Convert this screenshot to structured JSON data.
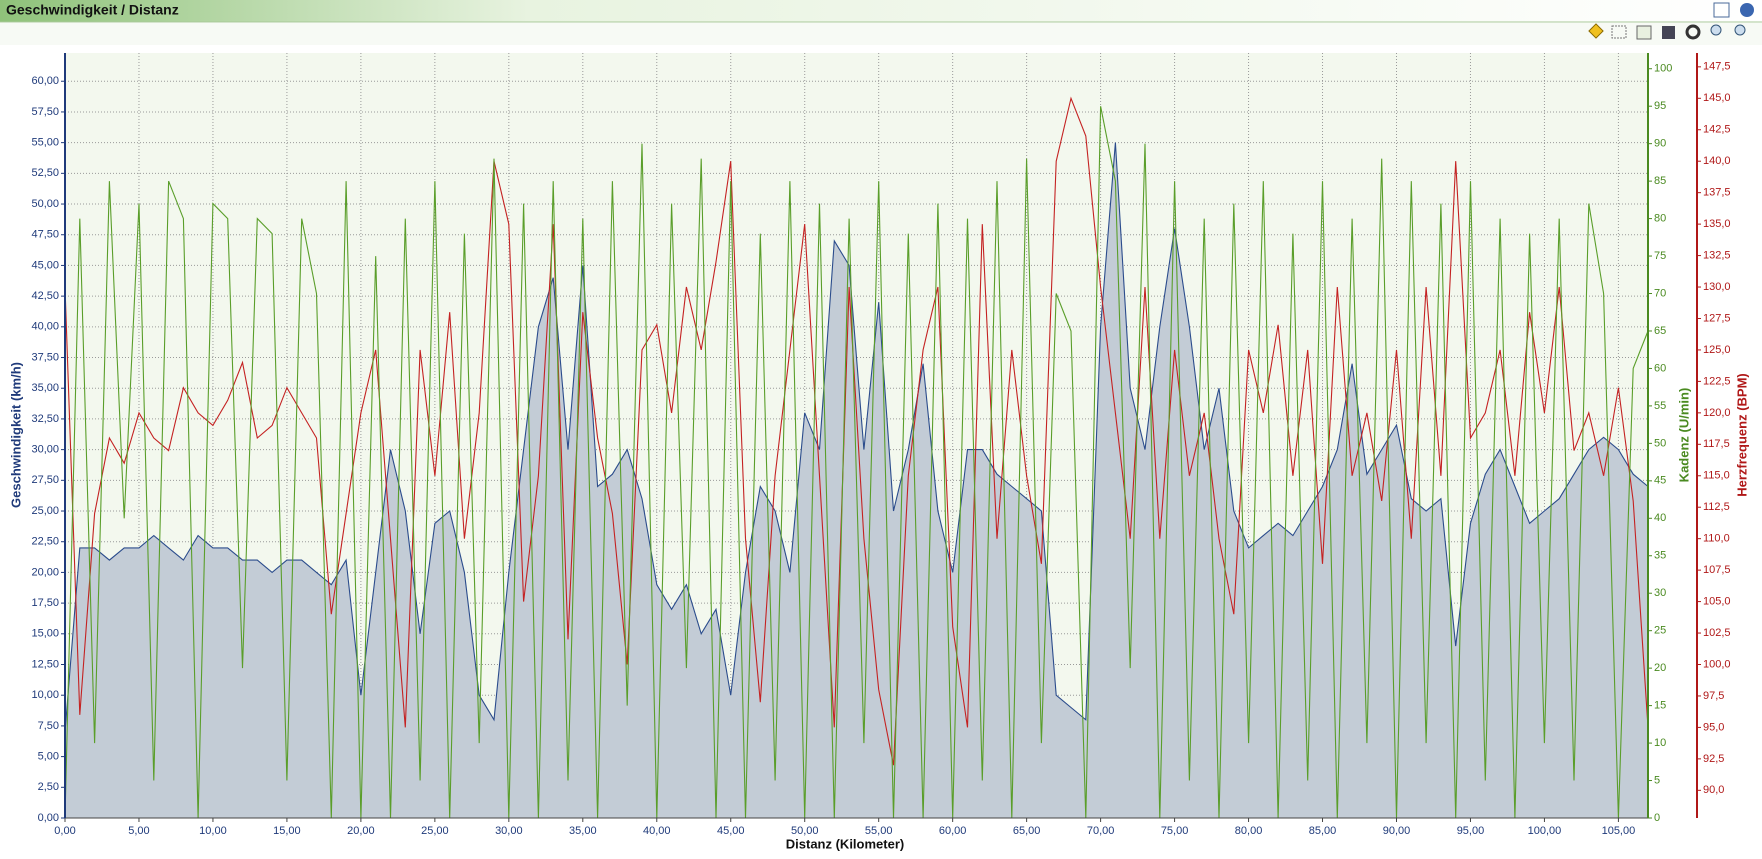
{
  "chart_data": {
    "type": "line",
    "title": "Geschwindigkeit / Distanz",
    "xlabel": "Distanz (Kilometer)",
    "ylabel": "Geschwindigkeit (km/h)",
    "y2label": "Kadenz (U/min)",
    "y3label": "Herzfrequenz (BPM)",
    "grid": true,
    "xlim": [
      0,
      107
    ],
    "ylim": [
      0,
      62.3
    ],
    "y2lim": [
      0,
      102.1
    ],
    "y3lim": [
      87.8,
      148.6
    ],
    "xticks": [
      {
        "value": 0,
        "label": "0,00"
      },
      {
        "value": 5,
        "label": "5,00"
      },
      {
        "value": 10,
        "label": "10,00"
      },
      {
        "value": 15,
        "label": "15,00"
      },
      {
        "value": 20,
        "label": "20,00"
      },
      {
        "value": 25,
        "label": "25,00"
      },
      {
        "value": 30,
        "label": "30,00"
      },
      {
        "value": 35,
        "label": "35,00"
      },
      {
        "value": 40,
        "label": "40,00"
      },
      {
        "value": 45,
        "label": "45,00"
      },
      {
        "value": 50,
        "label": "50,00"
      },
      {
        "value": 55,
        "label": "55,00"
      },
      {
        "value": 60,
        "label": "60,00"
      },
      {
        "value": 65,
        "label": "65,00"
      },
      {
        "value": 70,
        "label": "70,00"
      },
      {
        "value": 75,
        "label": "75,00"
      },
      {
        "value": 80,
        "label": "80,00"
      },
      {
        "value": 85,
        "label": "85,00"
      },
      {
        "value": 90,
        "label": "90,00"
      },
      {
        "value": 95,
        "label": "95,00"
      },
      {
        "value": 100,
        "label": "100,00"
      },
      {
        "value": 105,
        "label": "105,00"
      }
    ],
    "yticks": [
      {
        "value": 0,
        "label": "0,00"
      },
      {
        "value": 2.5,
        "label": "2,50"
      },
      {
        "value": 5,
        "label": "5,00"
      },
      {
        "value": 7.5,
        "label": "7,50"
      },
      {
        "value": 10,
        "label": "10,00"
      },
      {
        "value": 12.5,
        "label": "12,50"
      },
      {
        "value": 15,
        "label": "15,00"
      },
      {
        "value": 17.5,
        "label": "17,50"
      },
      {
        "value": 20,
        "label": "20,00"
      },
      {
        "value": 22.5,
        "label": "22,50"
      },
      {
        "value": 25,
        "label": "25,00"
      },
      {
        "value": 27.5,
        "label": "27,50"
      },
      {
        "value": 30,
        "label": "30,00"
      },
      {
        "value": 32.5,
        "label": "32,50"
      },
      {
        "value": 35,
        "label": "35,00"
      },
      {
        "value": 37.5,
        "label": "37,50"
      },
      {
        "value": 40,
        "label": "40,00"
      },
      {
        "value": 42.5,
        "label": "42,50"
      },
      {
        "value": 45,
        "label": "45,00"
      },
      {
        "value": 47.5,
        "label": "47,50"
      },
      {
        "value": 50,
        "label": "50,00"
      },
      {
        "value": 52.5,
        "label": "52,50"
      },
      {
        "value": 55,
        "label": "55,00"
      },
      {
        "value": 57.5,
        "label": "57,50"
      },
      {
        "value": 60,
        "label": "60,00"
      }
    ],
    "y2ticks": [
      0,
      5,
      10,
      15,
      20,
      25,
      30,
      35,
      40,
      45,
      50,
      55,
      60,
      65,
      70,
      75,
      80,
      85,
      90,
      95,
      100
    ],
    "y3ticks": [
      {
        "value": 90,
        "label": "90,0"
      },
      {
        "value": 92.5,
        "label": "92,5"
      },
      {
        "value": 95,
        "label": "95,0"
      },
      {
        "value": 97.5,
        "label": "97,5"
      },
      {
        "value": 100,
        "label": "100,0"
      },
      {
        "value": 102.5,
        "label": "102,5"
      },
      {
        "value": 105,
        "label": "105,0"
      },
      {
        "value": 107.5,
        "label": "107,5"
      },
      {
        "value": 110,
        "label": "110,0"
      },
      {
        "value": 112.5,
        "label": "112,5"
      },
      {
        "value": 115,
        "label": "115,0"
      },
      {
        "value": 117.5,
        "label": "117,5"
      },
      {
        "value": 120,
        "label": "120,0"
      },
      {
        "value": 122.5,
        "label": "122,5"
      },
      {
        "value": 125,
        "label": "125,0"
      },
      {
        "value": 127.5,
        "label": "127,5"
      },
      {
        "value": 130,
        "label": "130,0"
      },
      {
        "value": 132.5,
        "label": "132,5"
      },
      {
        "value": 135,
        "label": "135,0"
      },
      {
        "value": 137.5,
        "label": "137,5"
      },
      {
        "value": 140,
        "label": "140,0"
      },
      {
        "value": 142.5,
        "label": "142,5"
      },
      {
        "value": 145,
        "label": "145,0"
      },
      {
        "value": 147.5,
        "label": "147,5"
      }
    ],
    "x": [
      0,
      1,
      2,
      3,
      4,
      5,
      6,
      7,
      8,
      9,
      10,
      11,
      12,
      13,
      14,
      15,
      16,
      17,
      18,
      19,
      20,
      21,
      22,
      23,
      24,
      25,
      26,
      27,
      28,
      29,
      30,
      31,
      32,
      33,
      34,
      35,
      36,
      37,
      38,
      39,
      40,
      41,
      42,
      43,
      44,
      45,
      46,
      47,
      48,
      49,
      50,
      51,
      52,
      53,
      54,
      55,
      56,
      57,
      58,
      59,
      60,
      61,
      62,
      63,
      64,
      65,
      66,
      67,
      68,
      69,
      70,
      71,
      72,
      73,
      74,
      75,
      76,
      77,
      78,
      79,
      80,
      81,
      82,
      83,
      84,
      85,
      86,
      87,
      88,
      89,
      90,
      91,
      92,
      93,
      94,
      95,
      96,
      97,
      98,
      99,
      100,
      101,
      102,
      103,
      104,
      105,
      106,
      107
    ],
    "series": [
      {
        "color": "#2b4c8c",
        "fill": "#c3ccd6",
        "axis": "y",
        "values": [
          7,
          22,
          22,
          21,
          22,
          22,
          23,
          22,
          21,
          23,
          22,
          22,
          21,
          21,
          20,
          21,
          21,
          20,
          19,
          21,
          10,
          20,
          30,
          25,
          15,
          24,
          25,
          20,
          10,
          8,
          20,
          30,
          40,
          44,
          30,
          45,
          27,
          28,
          30,
          26,
          19,
          17,
          19,
          15,
          17,
          10,
          20,
          27,
          25,
          20,
          33,
          30,
          47,
          45,
          30,
          42,
          25,
          30,
          37,
          25,
          20,
          30,
          30,
          28,
          27,
          26,
          25,
          10,
          9,
          8,
          40,
          55,
          35,
          30,
          40,
          48,
          40,
          30,
          35,
          25,
          22,
          23,
          24,
          23,
          25,
          27,
          30,
          37,
          28,
          30,
          32,
          26,
          25,
          26,
          14,
          24,
          28,
          30,
          27,
          24,
          25,
          26,
          28,
          30,
          31,
          30,
          28,
          27
        ]
      },
      {
        "color": "#5a9e2a",
        "axis": "y2",
        "values": [
          0,
          80,
          10,
          85,
          40,
          82,
          5,
          85,
          80,
          0,
          82,
          80,
          20,
          80,
          78,
          5,
          80,
          70,
          0,
          85,
          0,
          75,
          0,
          80,
          5,
          85,
          0,
          78,
          10,
          88,
          0,
          82,
          0,
          85,
          5,
          80,
          0,
          85,
          15,
          90,
          0,
          82,
          20,
          88,
          0,
          85,
          0,
          78,
          5,
          85,
          0,
          82,
          0,
          80,
          10,
          85,
          0,
          78,
          0,
          82,
          0,
          80,
          5,
          85,
          0,
          88,
          10,
          70,
          65,
          0,
          95,
          85,
          20,
          90,
          0,
          85,
          5,
          80,
          0,
          82,
          10,
          85,
          0,
          78,
          5,
          85,
          0,
          80,
          10,
          88,
          0,
          85,
          10,
          82,
          0,
          85,
          5,
          80,
          0,
          78,
          10,
          80,
          5,
          82,
          70,
          0,
          60,
          65
        ]
      },
      {
        "color": "#c42222",
        "axis": "y3",
        "values": [
          130,
          96,
          112,
          118,
          116,
          120,
          118,
          117,
          122,
          120,
          119,
          121,
          124,
          118,
          119,
          122,
          120,
          118,
          104,
          112,
          120,
          125,
          110,
          95,
          125,
          115,
          128,
          110,
          120,
          140,
          135,
          105,
          115,
          135,
          102,
          128,
          118,
          112,
          100,
          125,
          127,
          120,
          130,
          125,
          132,
          140,
          110,
          97,
          115,
          125,
          135,
          115,
          95,
          130,
          110,
          98,
          92,
          115,
          125,
          130,
          103,
          95,
          135,
          110,
          125,
          115,
          108,
          140,
          145,
          142,
          130,
          120,
          110,
          130,
          110,
          125,
          115,
          120,
          110,
          104,
          125,
          120,
          127,
          115,
          125,
          108,
          130,
          115,
          120,
          113,
          125,
          110,
          130,
          115,
          140,
          118,
          120,
          125,
          115,
          128,
          120,
          130,
          117,
          120,
          115,
          122,
          113,
          95
        ]
      }
    ]
  }
}
